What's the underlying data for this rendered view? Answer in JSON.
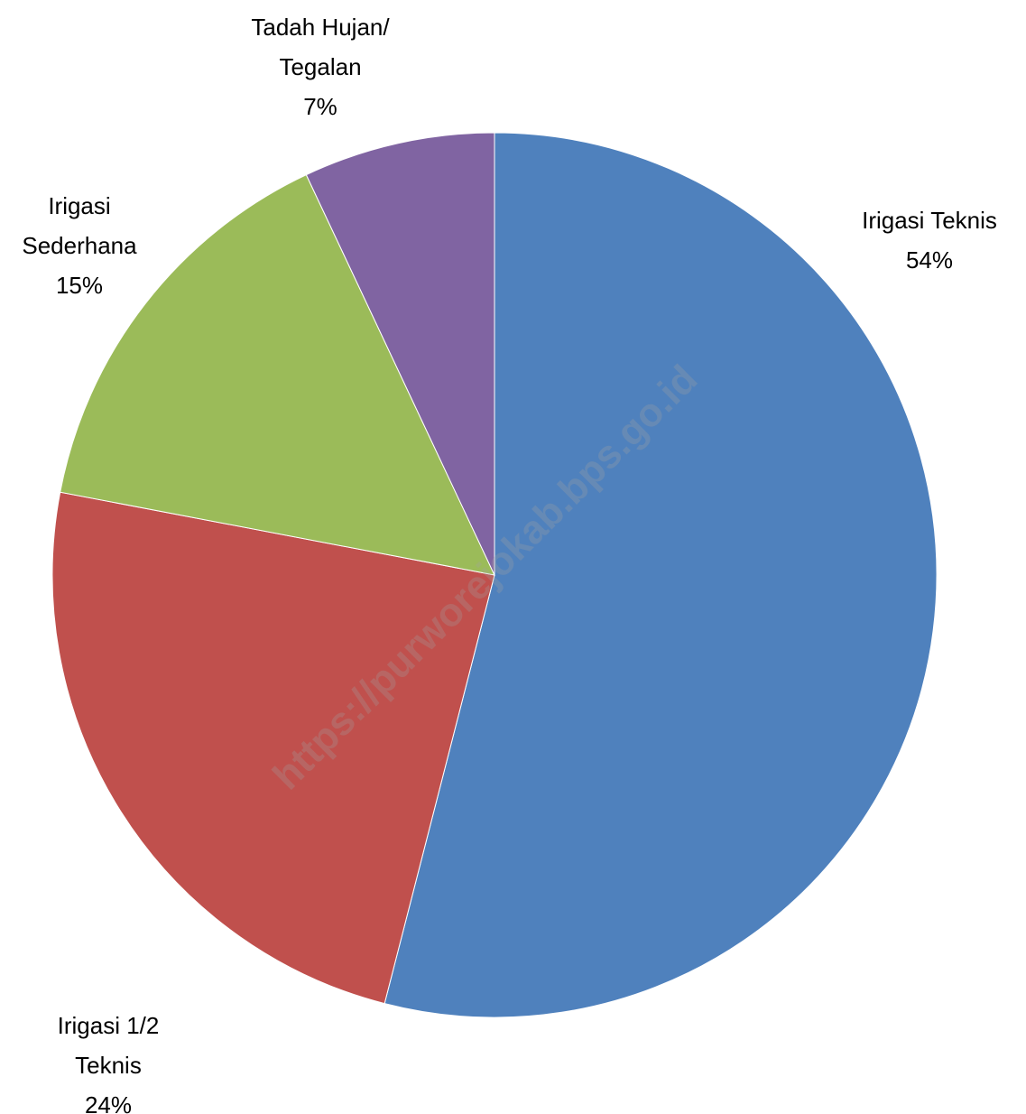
{
  "chart_data": {
    "type": "pie",
    "categories": [
      "Irigasi Teknis",
      "Irigasi 1/2 Teknis",
      "Irigasi Sederhana",
      "Tadah Hujan/ Tegalan"
    ],
    "values": [
      54,
      24,
      15,
      7
    ],
    "value_labels": [
      "54%",
      "24%",
      "15%",
      "7%"
    ],
    "colors": [
      "#4f81bd",
      "#c0504d",
      "#9bbb59",
      "#8064a2"
    ],
    "watermark": "https://purworejokab.bps.go.id"
  }
}
